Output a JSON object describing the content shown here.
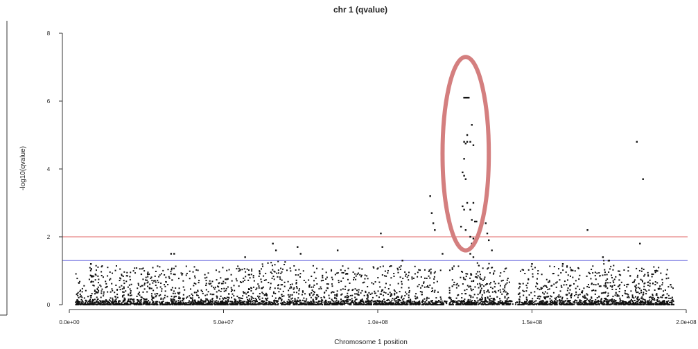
{
  "chart_data": {
    "type": "scatter",
    "title": "chr 1 (qvalue)",
    "xlabel": "Chromosome 1 position",
    "ylabel": "-log10(qvalue)",
    "xlim": [
      0,
      200000000
    ],
    "ylim": [
      0,
      8
    ],
    "x_ticks": [
      0,
      50000000,
      100000000,
      150000000,
      200000000
    ],
    "x_tick_labels": [
      "0.0e+00",
      "5.0e+07",
      "1.0e+08",
      "1.5e+08",
      "2.0e+08"
    ],
    "y_ticks": [
      0,
      2,
      4,
      6,
      8
    ],
    "y_tick_labels": [
      "0",
      "2",
      "4",
      "6",
      "8"
    ],
    "grid": false,
    "legend": "none",
    "thresholds": [
      {
        "y": 2.0,
        "color": "#e06666"
      },
      {
        "y": 1.3,
        "color": "#6666dd"
      }
    ],
    "point_color": "#111111",
    "highlight": {
      "shape": "ellipse",
      "color": "#d47f7f",
      "x_range": [
        121000000,
        136000000
      ],
      "y_range": [
        1.6,
        7.3
      ]
    },
    "notable_points": [
      {
        "x": 7000000,
        "y": 1.2
      },
      {
        "x": 33000000,
        "y": 1.5
      },
      {
        "x": 34000000,
        "y": 1.5
      },
      {
        "x": 57000000,
        "y": 1.4
      },
      {
        "x": 66000000,
        "y": 1.8
      },
      {
        "x": 67000000,
        "y": 1.6
      },
      {
        "x": 74000000,
        "y": 1.7
      },
      {
        "x": 75000000,
        "y": 1.5
      },
      {
        "x": 87000000,
        "y": 1.6
      },
      {
        "x": 101000000,
        "y": 2.1
      },
      {
        "x": 101500000,
        "y": 1.7
      },
      {
        "x": 108000000,
        "y": 1.3
      },
      {
        "x": 117000000,
        "y": 3.2
      },
      {
        "x": 117500000,
        "y": 2.7
      },
      {
        "x": 118000000,
        "y": 2.4
      },
      {
        "x": 118500000,
        "y": 2.2
      },
      {
        "x": 121000000,
        "y": 1.5
      },
      {
        "x": 128000000,
        "y": 6.1
      },
      {
        "x": 128500000,
        "y": 6.1
      },
      {
        "x": 129000000,
        "y": 6.1
      },
      {
        "x": 129500000,
        "y": 6.1
      },
      {
        "x": 130500000,
        "y": 5.3
      },
      {
        "x": 129000000,
        "y": 5.0
      },
      {
        "x": 128000000,
        "y": 4.8
      },
      {
        "x": 128500000,
        "y": 4.75
      },
      {
        "x": 129000000,
        "y": 4.8
      },
      {
        "x": 130000000,
        "y": 4.8
      },
      {
        "x": 131000000,
        "y": 4.7
      },
      {
        "x": 128000000,
        "y": 4.3
      },
      {
        "x": 127500000,
        "y": 3.9
      },
      {
        "x": 128000000,
        "y": 3.8
      },
      {
        "x": 128500000,
        "y": 3.7
      },
      {
        "x": 129000000,
        "y": 3.0
      },
      {
        "x": 131000000,
        "y": 3.0
      },
      {
        "x": 127500000,
        "y": 2.9
      },
      {
        "x": 128000000,
        "y": 2.8
      },
      {
        "x": 130000000,
        "y": 2.8
      },
      {
        "x": 130500000,
        "y": 2.5
      },
      {
        "x": 131500000,
        "y": 2.45
      },
      {
        "x": 132000000,
        "y": 2.45
      },
      {
        "x": 127000000,
        "y": 2.3
      },
      {
        "x": 128500000,
        "y": 2.2
      },
      {
        "x": 130000000,
        "y": 2.0
      },
      {
        "x": 131000000,
        "y": 1.95
      },
      {
        "x": 130500000,
        "y": 1.8
      },
      {
        "x": 135000000,
        "y": 2.4
      },
      {
        "x": 135500000,
        "y": 2.1
      },
      {
        "x": 136000000,
        "y": 1.9
      },
      {
        "x": 137000000,
        "y": 1.6
      },
      {
        "x": 130000000,
        "y": 1.5
      },
      {
        "x": 131000000,
        "y": 1.4
      },
      {
        "x": 150000000,
        "y": 1.2
      },
      {
        "x": 160000000,
        "y": 1.2
      },
      {
        "x": 168000000,
        "y": 2.2
      },
      {
        "x": 173000000,
        "y": 1.4
      },
      {
        "x": 175000000,
        "y": 1.3
      },
      {
        "x": 184000000,
        "y": 4.8
      },
      {
        "x": 186000000,
        "y": 3.7
      },
      {
        "x": 185000000,
        "y": 1.8
      }
    ]
  }
}
